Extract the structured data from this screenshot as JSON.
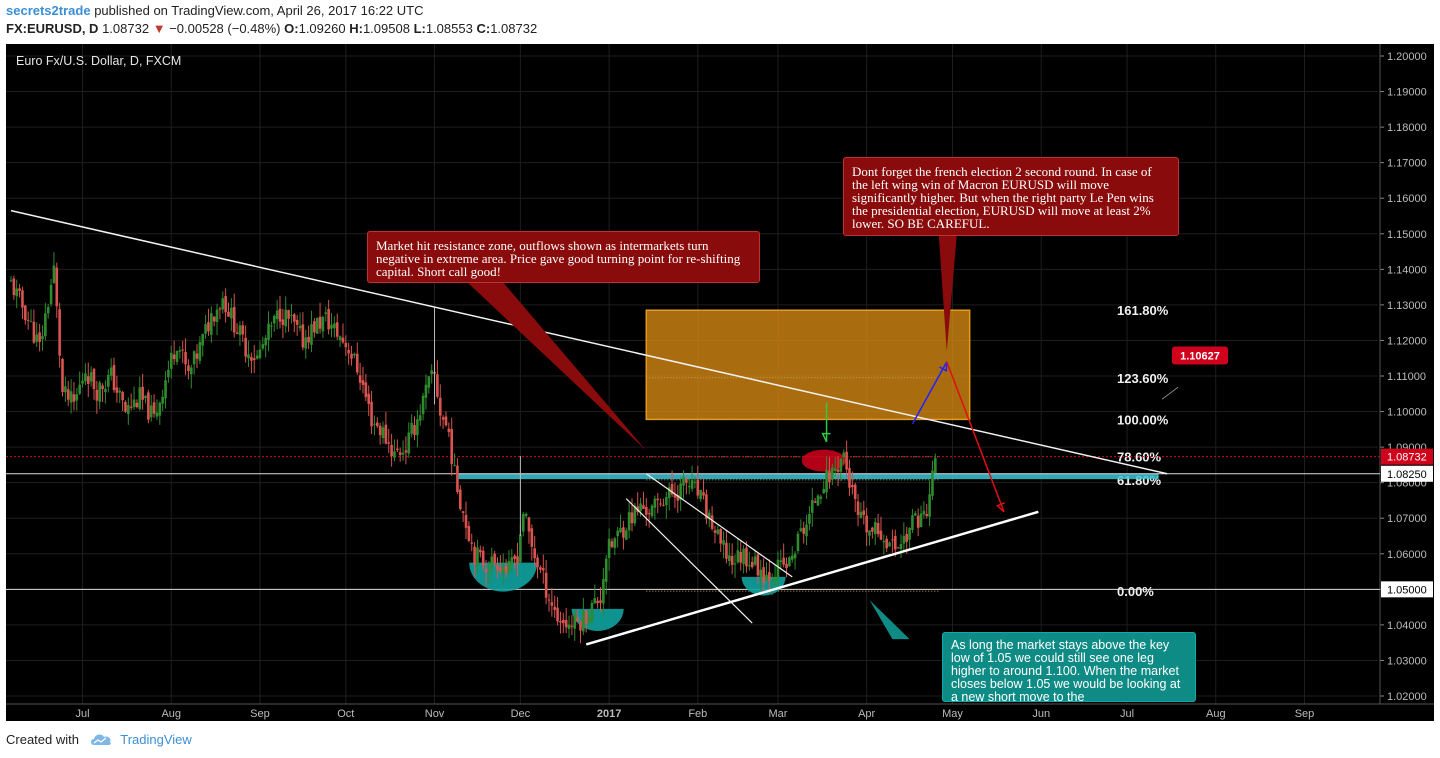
{
  "header": {
    "author": "secrets2trade",
    "published_text": "published on TradingView.com, April 26, 2017 16:22 UTC",
    "symbol": "FX:EURUSD, D",
    "last_price": "1.08732",
    "change_arrow": "▼",
    "change": "−0.00528 (−0.48%)",
    "o_label": "O:",
    "o_value": "1.09260",
    "h_label": "H:",
    "h_value": "1.09508",
    "l_label": "L:",
    "l_value": "1.08553",
    "c_label": "C:",
    "c_value": "1.08732"
  },
  "chart_title": "Euro Fx/U.S. Dollar, D, FXCM",
  "footer": {
    "created_with": "Created with",
    "brand": "TradingView"
  },
  "colors": {
    "background": "#000000",
    "candle_up": "#2e8b2e",
    "candle_down": "#d9534f",
    "fib_zone": "#d98a12",
    "resistance_zone": "#3bc6d6",
    "callout_red": "#8a0b0b",
    "callout_teal": "#0f8b86",
    "price_label_red": "#d0021b"
  },
  "annotations": {
    "resistance_note": "Market hit resistance zone, outflows shown as intermarkets turn negative in extreme area. Price gave good turning point for re-shifting capital. Short call good!",
    "election_note": "Dont forget the french election 2 second round. In case of the left wing win of Macron EURUSD will move significantly higher. But when the right party Le Pen wins the presidential election, EURUSD will move at least 2% lower. SO BE CAREFUL.",
    "support_note": "As long the market stays above the key low of 1.05 we could still see one leg higher to around 1.100. When the market closes below 1.05 we would be looking at a new short move to the",
    "target_label": "1.10627"
  },
  "chart_data": {
    "type": "candlestick",
    "title": "Euro Fx/U.S. Dollar, D, FXCM",
    "ylim": [
      1.0175,
      1.2075
    ],
    "y_ticks": [
      1.02,
      1.03,
      1.04,
      1.05,
      1.06,
      1.07,
      1.08,
      1.09,
      1.1,
      1.11,
      1.12,
      1.13,
      1.14,
      1.15,
      1.16,
      1.17,
      1.18,
      1.19,
      1.2
    ],
    "y_tick_labels": [
      "1.02000",
      "1.03000",
      "1.04000",
      "1.05000",
      "1.06000",
      "1.07000",
      "1.08000",
      "1.09000",
      "1.10000",
      "1.11000",
      "1.12000",
      "1.13000",
      "1.14000",
      "1.15000",
      "1.16000",
      "1.17000",
      "1.18000",
      "1.19000",
      "1.20000"
    ],
    "x_ticks": [
      {
        "label": "Jul",
        "day": 25
      },
      {
        "label": "Aug",
        "day": 56
      },
      {
        "label": "Sep",
        "day": 87
      },
      {
        "label": "Oct",
        "day": 117
      },
      {
        "label": "Nov",
        "day": 148
      },
      {
        "label": "Dec",
        "day": 178
      },
      {
        "label": "2017",
        "day": 209
      },
      {
        "label": "Feb",
        "day": 240
      },
      {
        "label": "Mar",
        "day": 268
      },
      {
        "label": "Apr",
        "day": 299
      },
      {
        "label": "May",
        "day": 329
      },
      {
        "label": "Jun",
        "day": 360
      },
      {
        "label": "Jul",
        "day": 390
      },
      {
        "label": "Aug",
        "day": 421
      },
      {
        "label": "Sep",
        "day": 452
      }
    ],
    "x_range_days": [
      0,
      470
    ],
    "price_labels": [
      {
        "value": 1.08732,
        "text": "1.08732",
        "color": "#d0021b"
      },
      {
        "value": 1.0825,
        "text": "1.08250",
        "color": "#ffffff"
      },
      {
        "value": 1.05,
        "text": "1.05000",
        "color": "#ffffff"
      }
    ],
    "fib_levels": [
      {
        "label": "161.80%",
        "value": 1.1285
      },
      {
        "label": "123.60%",
        "value": 1.1095
      },
      {
        "label": "100.00%",
        "value": 1.0978
      },
      {
        "label": "78.60%",
        "value": 1.0873
      },
      {
        "label": "61.80%",
        "value": 1.0808
      },
      {
        "label": "0.00%",
        "value": 1.0495
      }
    ],
    "ohlc_anchors": [
      [
        0,
        1.136
      ],
      [
        5,
        1.128
      ],
      [
        10,
        1.118
      ],
      [
        15,
        1.14
      ],
      [
        18,
        1.105
      ],
      [
        22,
        1.102
      ],
      [
        26,
        1.112
      ],
      [
        30,
        1.106
      ],
      [
        35,
        1.11
      ],
      [
        40,
        1.1
      ],
      [
        45,
        1.104
      ],
      [
        50,
        1.098
      ],
      [
        55,
        1.112
      ],
      [
        58,
        1.12
      ],
      [
        62,
        1.11
      ],
      [
        66,
        1.118
      ],
      [
        70,
        1.127
      ],
      [
        74,
        1.132
      ],
      [
        78,
        1.125
      ],
      [
        82,
        1.118
      ],
      [
        86,
        1.115
      ],
      [
        90,
        1.122
      ],
      [
        94,
        1.128
      ],
      [
        98,
        1.125
      ],
      [
        102,
        1.12
      ],
      [
        106,
        1.124
      ],
      [
        110,
        1.126
      ],
      [
        114,
        1.122
      ],
      [
        118,
        1.118
      ],
      [
        122,
        1.11
      ],
      [
        126,
        1.098
      ],
      [
        130,
        1.094
      ],
      [
        134,
        1.088
      ],
      [
        138,
        1.09
      ],
      [
        142,
        1.098
      ],
      [
        146,
        1.108
      ],
      [
        148,
        1.11
      ],
      [
        150,
        1.1
      ],
      [
        153,
        1.094
      ],
      [
        155,
        1.082
      ],
      [
        158,
        1.072
      ],
      [
        162,
        1.06
      ],
      [
        166,
        1.057
      ],
      [
        170,
        1.058
      ],
      [
        174,
        1.055
      ],
      [
        177,
        1.06
      ],
      [
        179,
        1.072
      ],
      [
        182,
        1.062
      ],
      [
        185,
        1.055
      ],
      [
        188,
        1.048
      ],
      [
        191,
        1.042
      ],
      [
        195,
        1.04
      ],
      [
        199,
        1.041
      ],
      [
        203,
        1.045
      ],
      [
        206,
        1.048
      ],
      [
        208,
        1.06
      ],
      [
        212,
        1.065
      ],
      [
        216,
        1.07
      ],
      [
        220,
        1.073
      ],
      [
        224,
        1.072
      ],
      [
        228,
        1.076
      ],
      [
        232,
        1.077
      ],
      [
        236,
        1.08
      ],
      [
        240,
        1.077
      ],
      [
        244,
        1.07
      ],
      [
        248,
        1.062
      ],
      [
        252,
        1.058
      ],
      [
        256,
        1.06
      ],
      [
        260,
        1.057
      ],
      [
        264,
        1.054
      ],
      [
        268,
        1.056
      ],
      [
        272,
        1.057
      ],
      [
        276,
        1.066
      ],
      [
        279,
        1.07
      ],
      [
        282,
        1.078
      ],
      [
        285,
        1.081
      ],
      [
        288,
        1.084
      ],
      [
        291,
        1.088
      ],
      [
        293,
        1.08
      ],
      [
        296,
        1.07
      ],
      [
        300,
        1.066
      ],
      [
        304,
        1.066
      ],
      [
        308,
        1.062
      ],
      [
        312,
        1.064
      ],
      [
        316,
        1.07
      ],
      [
        320,
        1.071
      ],
      [
        323,
        1.087
      ]
    ]
  },
  "drawings": {
    "long_downtrend": [
      [
        0,
        1.1565
      ],
      [
        404,
        1.0825
      ]
    ],
    "rising_support": [
      [
        201,
        1.0345
      ],
      [
        359,
        1.0718
      ]
    ],
    "channel_upper": [
      [
        222,
        1.0825
      ],
      [
        273,
        1.0535
      ]
    ],
    "channel_lower": [
      [
        215,
        1.0755
      ],
      [
        259,
        1.0405
      ]
    ],
    "resistance_zone": [
      [
        156,
        1.081
      ],
      [
        401,
        1.0825
      ]
    ],
    "red_ellipse_center": [
      284,
      1.0862
    ],
    "blue_arrow": [
      [
        315,
        1.0965
      ],
      [
        327,
        1.114
      ]
    ],
    "red_arrow": [
      [
        327,
        1.114
      ],
      [
        347,
        1.0718
      ]
    ],
    "green_arrow_x": 285
  }
}
